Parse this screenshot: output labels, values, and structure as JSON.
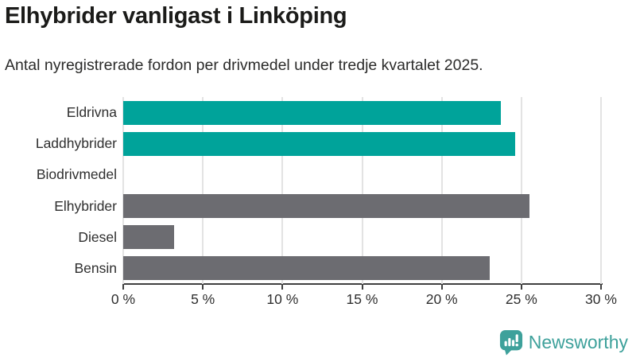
{
  "header": {
    "title": "Elhybrider vanligast i Linköping",
    "subtitle": "Antal nyregistrerade fordon per drivmedel under tredje kvartalet 2025."
  },
  "chart_data": {
    "type": "bar",
    "orientation": "horizontal",
    "title": "Elhybrider vanligast i Linköping",
    "subtitle": "Antal nyregistrerade fordon per drivmedel under tredje kvartalet 2025.",
    "categories": [
      "Eldrivna",
      "Laddhybrider",
      "Biodrivmedel",
      "Elhybrider",
      "Diesel",
      "Bensin"
    ],
    "values": [
      23.7,
      24.6,
      0,
      25.5,
      3.2,
      23.0
    ],
    "unit": "%",
    "bar_colors": [
      "#00a39a",
      "#00a39a",
      "#6c6c71",
      "#6c6c71",
      "#6c6c71",
      "#6c6c71"
    ],
    "xlim": [
      0,
      30
    ],
    "xticks": [
      0,
      5,
      10,
      15,
      20,
      25,
      30
    ],
    "xtick_labels": [
      "0 %",
      "5 %",
      "10 %",
      "15 %",
      "20 %",
      "25 %",
      "30 %"
    ],
    "grid": true,
    "legend": "none",
    "xlabel": "",
    "ylabel": ""
  },
  "branding": {
    "name": "Newsworthy",
    "color": "#3ea19b",
    "icon": "speech-bubble-bar-chart-icon"
  },
  "colors": {
    "accent_teal": "#00a39a",
    "neutral_gray": "#6c6c71",
    "axis": "#3f3f3f",
    "gridline": "#e3e3e3",
    "background": "#ffffff",
    "title_text": "#1b1b19",
    "body_text": "#2b2b2a"
  }
}
